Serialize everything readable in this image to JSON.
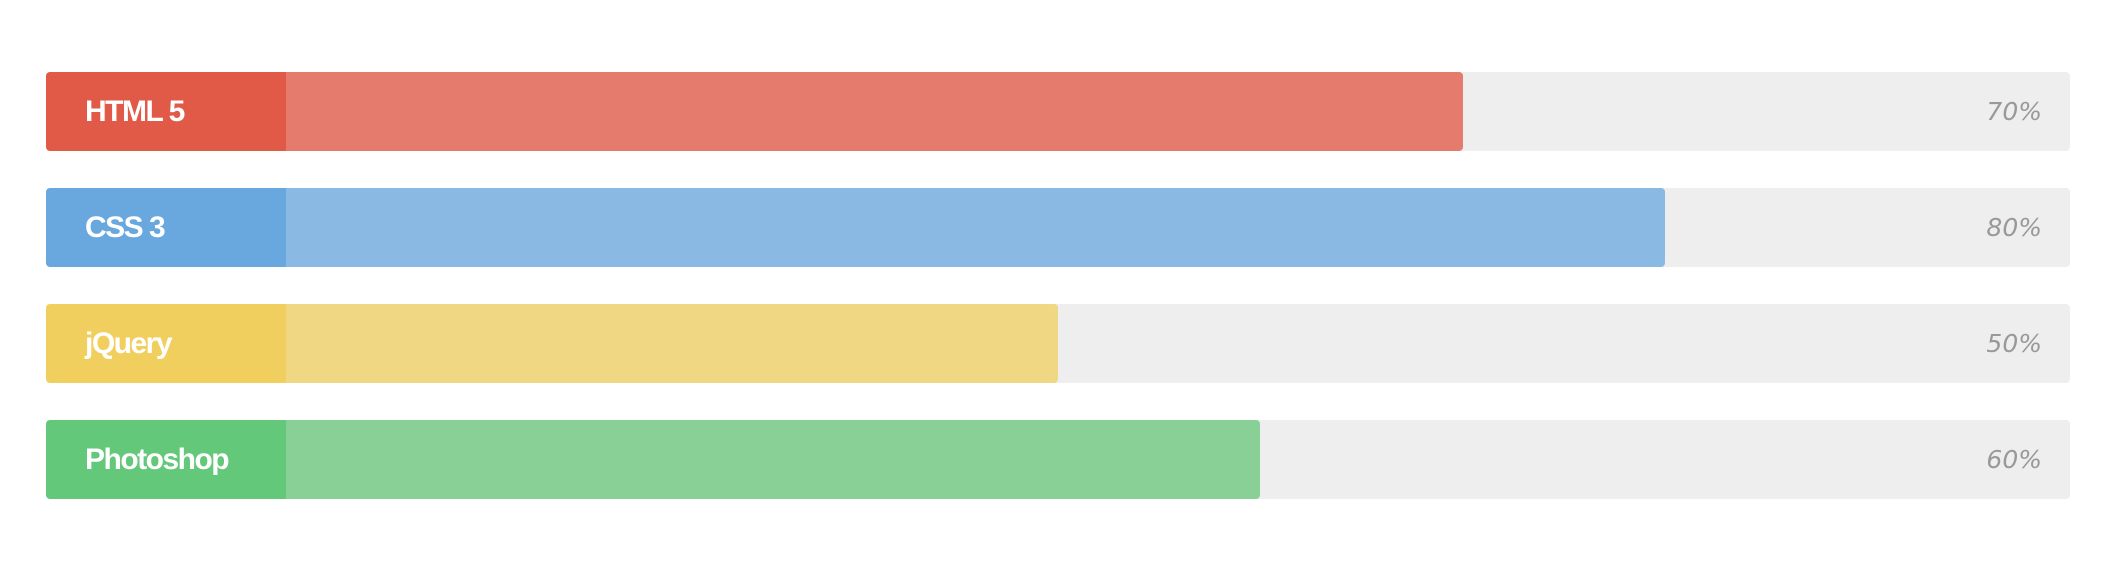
{
  "skills": [
    {
      "label": "HTML 5",
      "percent_text": "70%",
      "level": 0.7,
      "label_color": "#e05a47",
      "fill_color": "#e47b6d"
    },
    {
      "label": "CSS 3",
      "percent_text": "80%",
      "level": 0.8,
      "label_color": "#68a8de",
      "fill_color": "#8abae3"
    },
    {
      "label": "jQuery",
      "percent_text": "50%",
      "level": 0.5,
      "label_color": "#f1cf5f",
      "fill_color": "#f0d784"
    },
    {
      "label": "Photoshop",
      "percent_text": "60%",
      "level": 0.6,
      "label_color": "#63c87a",
      "fill_color": "#88d095"
    }
  ]
}
